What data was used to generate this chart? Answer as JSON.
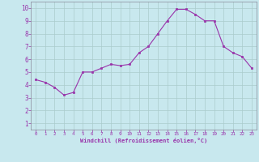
{
  "x": [
    0,
    1,
    2,
    3,
    4,
    5,
    6,
    7,
    8,
    9,
    10,
    11,
    12,
    13,
    14,
    15,
    16,
    17,
    18,
    19,
    20,
    21,
    22,
    23
  ],
  "y": [
    4.4,
    4.2,
    3.8,
    3.2,
    3.4,
    5.0,
    5.0,
    5.3,
    5.6,
    5.5,
    5.6,
    6.5,
    7.0,
    8.0,
    9.0,
    9.9,
    9.9,
    9.5,
    9.0,
    9.0,
    7.0,
    6.5,
    6.2,
    5.3
  ],
  "x_ticks": [
    0,
    1,
    2,
    3,
    4,
    5,
    6,
    7,
    8,
    9,
    10,
    11,
    12,
    13,
    14,
    15,
    16,
    17,
    18,
    19,
    20,
    21,
    22,
    23
  ],
  "y_ticks": [
    1,
    2,
    3,
    4,
    5,
    6,
    7,
    8,
    9,
    10
  ],
  "ylim": [
    0.5,
    10.5
  ],
  "xlim": [
    -0.5,
    23.5
  ],
  "xlabel": "Windchill (Refroidissement éolien,°C)",
  "line_color": "#9933aa",
  "marker_color": "#9933aa",
  "bg_color": "#c8e8ee",
  "grid_color": "#aacccc",
  "tick_label_color": "#9933aa",
  "axis_label_color": "#9933aa",
  "figsize": [
    3.2,
    2.0
  ],
  "dpi": 100
}
